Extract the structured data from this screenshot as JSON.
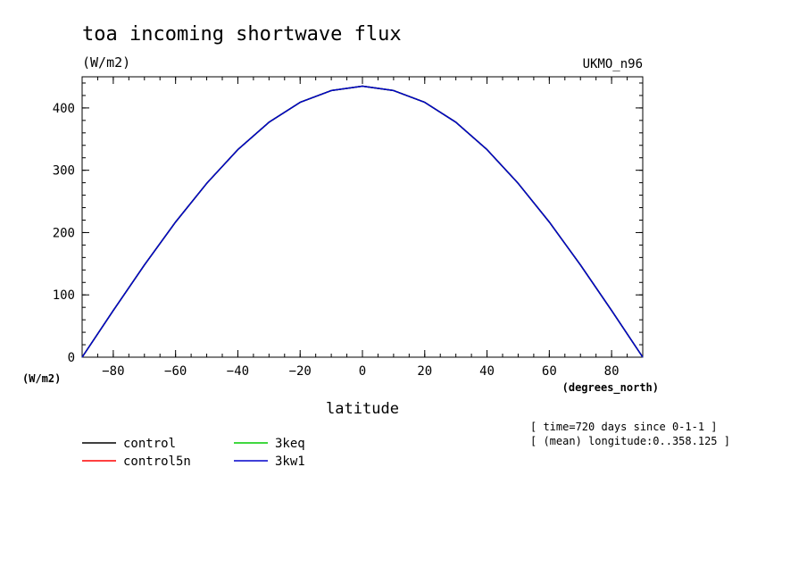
{
  "chart_data": {
    "type": "line",
    "title": "toa incoming shortwave flux",
    "subtitle": "(W/m2)",
    "source_label": "UKMO_n96",
    "xlabel": "latitude",
    "x_units": "(degrees_north)",
    "y_units": "(W/m2)",
    "xlim": [
      -90,
      90
    ],
    "ylim": [
      0,
      450
    ],
    "x_ticks": [
      -80,
      -60,
      -40,
      -20,
      0,
      20,
      40,
      60,
      80
    ],
    "y_ticks": [
      0,
      100,
      200,
      300,
      400
    ],
    "x": [
      -90,
      -80,
      -70,
      -60,
      -50,
      -40,
      -30,
      -20,
      -10,
      0,
      10,
      20,
      30,
      40,
      50,
      60,
      70,
      80,
      90
    ],
    "series": [
      {
        "name": "control",
        "color": "#000000",
        "values": [
          0,
          75,
          148,
          217,
          279,
          333,
          377,
          409,
          428,
          435,
          428,
          409,
          377,
          333,
          279,
          217,
          148,
          75,
          0
        ]
      },
      {
        "name": "control5n",
        "color": "#ff0000",
        "values": [
          0,
          75,
          148,
          217,
          279,
          333,
          377,
          409,
          428,
          435,
          428,
          409,
          377,
          333,
          279,
          217,
          148,
          75,
          0
        ]
      },
      {
        "name": "3keq",
        "color": "#00cc00",
        "values": [
          0,
          75,
          148,
          217,
          279,
          333,
          377,
          409,
          428,
          435,
          428,
          409,
          377,
          333,
          279,
          217,
          148,
          75,
          0
        ]
      },
      {
        "name": "3kw1",
        "color": "#0000cc",
        "values": [
          0,
          75,
          148,
          217,
          279,
          333,
          377,
          409,
          428,
          435,
          428,
          409,
          377,
          333,
          279,
          217,
          148,
          75,
          0
        ]
      }
    ],
    "notes": [
      "[ time=720 days since 0-1-1 ]",
      "[ (mean) longitude:0..358.125 ]"
    ]
  }
}
